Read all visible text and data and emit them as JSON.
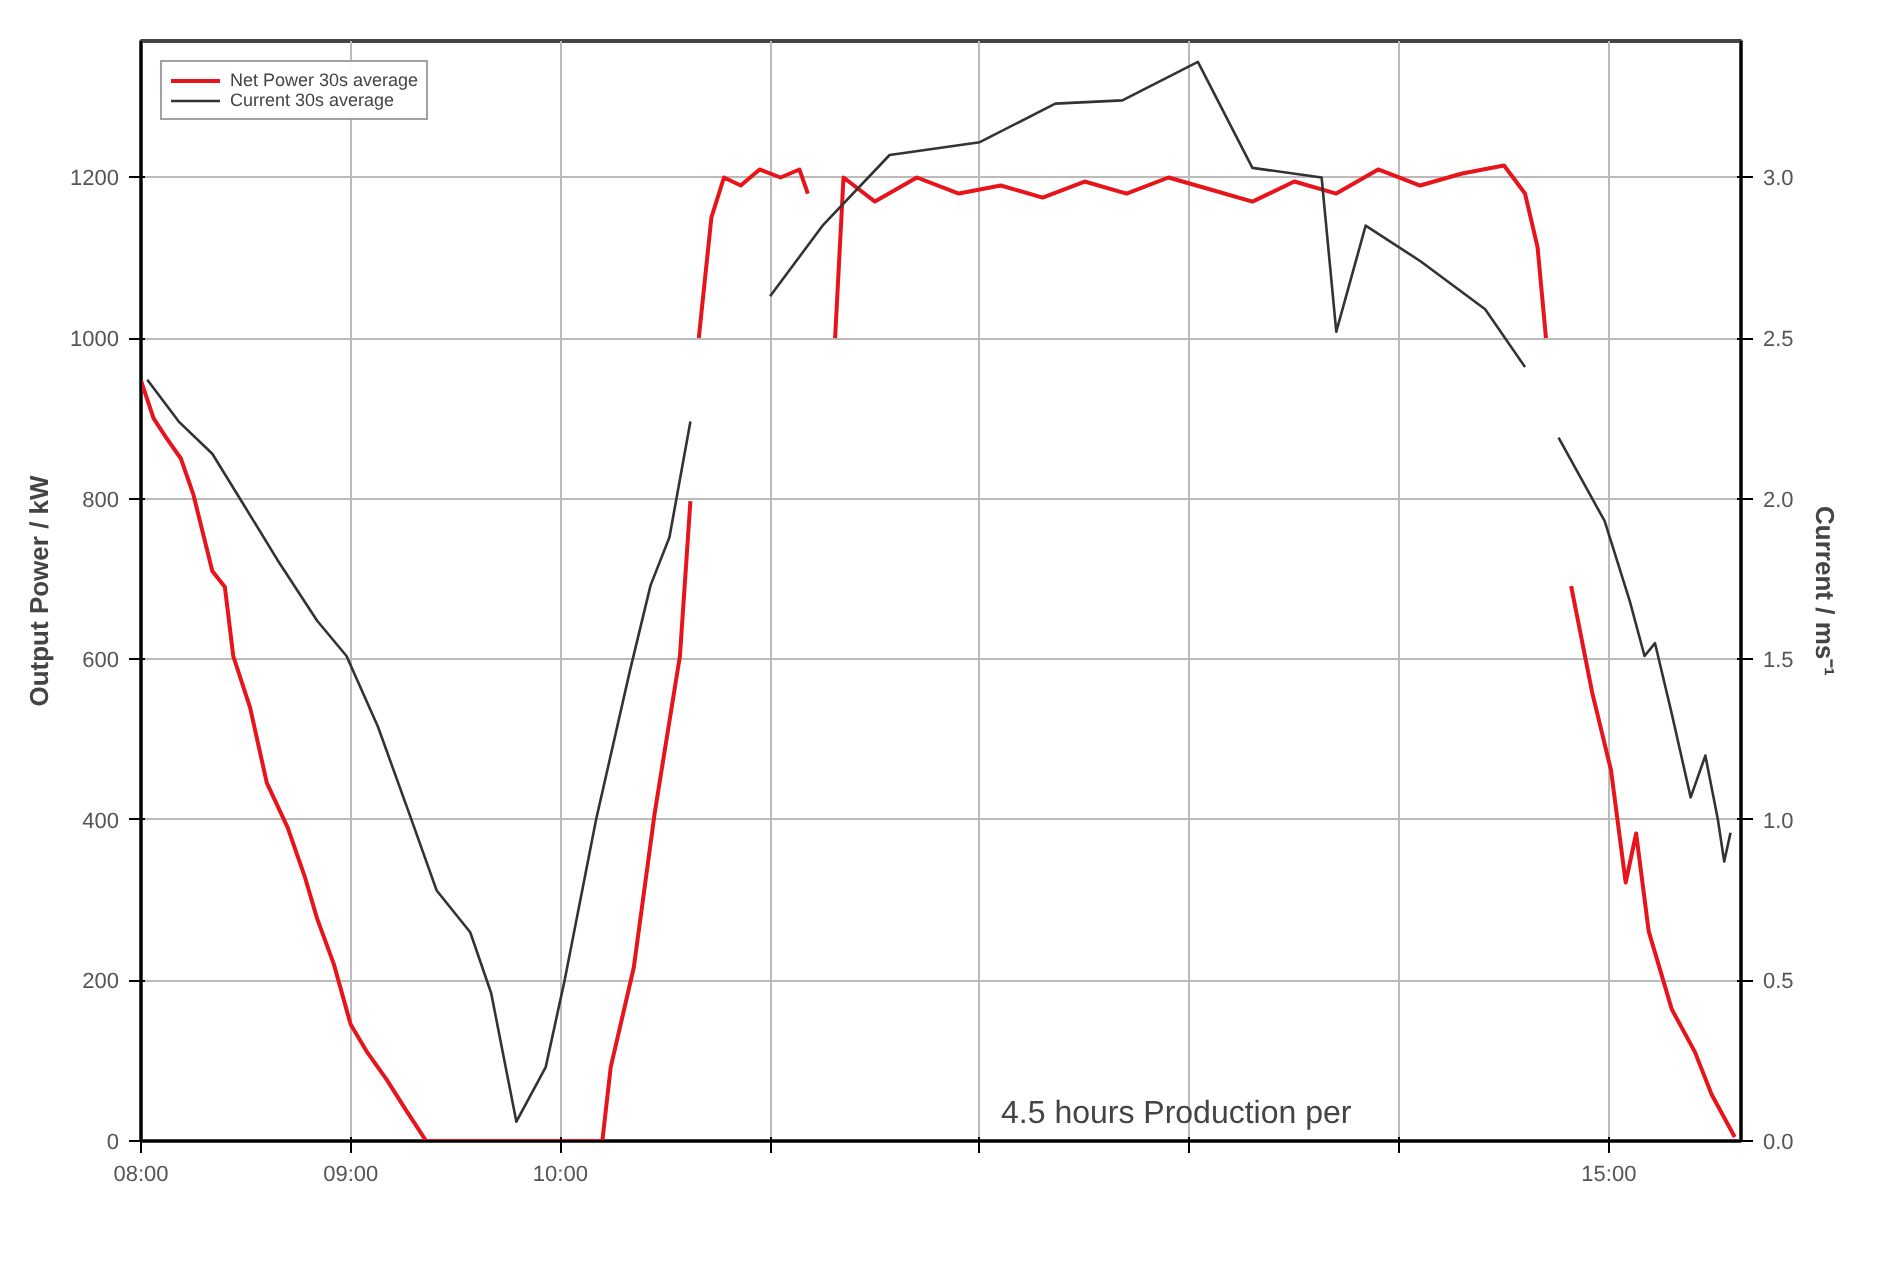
{
  "chart_data": {
    "type": "line",
    "ylabel": "Output Power / kW",
    "y2label": "Current / ms⁻¹",
    "xlim": [
      8,
      15.63
    ],
    "ylim": [
      0,
      1370
    ],
    "y2lim": [
      0,
      3.425
    ],
    "xticks": [
      {
        "value": 8,
        "label": "08:00"
      },
      {
        "value": 9,
        "label": "09:00"
      },
      {
        "value": 10,
        "label": "10:00"
      },
      {
        "value": 11,
        "label": null
      },
      {
        "value": 12,
        "label": null
      },
      {
        "value": 13,
        "label": null
      },
      {
        "value": 14,
        "label": null
      },
      {
        "value": 15,
        "label": "15:00"
      }
    ],
    "yticks": [
      0,
      200,
      400,
      600,
      800,
      1000,
      1200
    ],
    "y2ticks": [
      {
        "value": 0,
        "label": "0.0"
      },
      {
        "value": 0.5,
        "label": "0.5"
      },
      {
        "value": 1,
        "label": "1.0"
      },
      {
        "value": 1.5,
        "label": "1.5"
      },
      {
        "value": 2,
        "label": "2.0"
      },
      {
        "value": 2.5,
        "label": "2.5"
      },
      {
        "value": 3,
        "label": "3.0"
      }
    ],
    "grid": true,
    "legend": "top left",
    "series": [
      {
        "name": "Net Power 30s average",
        "color": "#e8141c",
        "x": [
          8.0,
          8.06,
          8.12,
          8.19,
          8.25,
          8.34,
          8.4,
          8.44,
          8.52,
          8.6,
          8.7,
          8.78,
          8.84,
          8.92,
          9.0,
          9.08,
          9.17,
          9.26,
          9.36,
          9.5,
          9.8,
          10.2,
          10.24,
          10.35,
          10.45,
          10.57,
          10.62,
          10.64,
          10.66,
          10.72,
          10.78,
          10.86,
          10.95,
          11.05,
          11.14,
          11.18,
          11.2,
          11.29,
          11.31,
          11.35,
          11.5,
          11.7,
          11.9,
          12.1,
          12.3,
          12.5,
          12.7,
          12.9,
          13.1,
          13.3,
          13.5,
          13.7,
          13.9,
          14.1,
          14.3,
          14.5,
          14.6,
          14.66,
          14.7,
          14.74,
          14.82,
          14.92,
          15.01,
          15.08,
          15.13,
          15.19,
          15.3,
          15.41,
          15.49,
          15.6
        ],
        "values": [
          947,
          900,
          876,
          850,
          805,
          710,
          690,
          604,
          540,
          446,
          390,
          330,
          277,
          220,
          145,
          110,
          77,
          40,
          0,
          0,
          0,
          0,
          92,
          216,
          409,
          604,
          797,
          null,
          1000,
          1150,
          1200,
          1190,
          1210,
          1200,
          1210,
          1180,
          null,
          null,
          1000,
          1200,
          1170,
          1200,
          1180,
          1190,
          1175,
          1195,
          1180,
          1200,
          1185,
          1170,
          1195,
          1180,
          1210,
          1190,
          1205,
          1215,
          1180,
          1113,
          1000,
          null,
          691,
          559,
          462,
          322,
          383,
          261,
          164,
          111,
          58,
          5
        ]
      },
      {
        "name": "Current 30s average",
        "color": "#333333",
        "axis": "y2",
        "x": [
          8.03,
          8.18,
          8.34,
          8.5,
          8.65,
          8.84,
          8.98,
          9.13,
          9.29,
          9.41,
          9.57,
          9.67,
          9.79,
          9.93,
          10.02,
          10.17,
          10.33,
          10.43,
          10.52,
          10.62,
          10.64,
          11.0,
          11.25,
          11.57,
          12.0,
          12.36,
          12.68,
          13.04,
          13.3,
          13.63,
          13.7,
          13.84,
          14.1,
          14.41,
          14.6,
          14.65,
          14.76,
          14.98,
          15.1,
          15.17,
          15.22,
          15.3,
          15.39,
          15.46,
          15.52,
          15.55,
          15.58
        ],
        "values": [
          2.37,
          2.24,
          2.14,
          1.97,
          1.81,
          1.62,
          1.51,
          1.29,
          1.0,
          0.78,
          0.65,
          0.46,
          0.06,
          0.23,
          0.5,
          1.0,
          1.46,
          1.73,
          1.88,
          2.24,
          null,
          2.63,
          2.85,
          3.07,
          3.11,
          3.23,
          3.24,
          3.36,
          3.03,
          3.0,
          2.52,
          2.85,
          2.74,
          2.59,
          2.41,
          null,
          2.19,
          1.93,
          1.68,
          1.51,
          1.55,
          1.33,
          1.07,
          1.2,
          1.0,
          0.87,
          0.96
        ]
      }
    ],
    "annotations": [
      "4.5 hours Production per"
    ]
  }
}
